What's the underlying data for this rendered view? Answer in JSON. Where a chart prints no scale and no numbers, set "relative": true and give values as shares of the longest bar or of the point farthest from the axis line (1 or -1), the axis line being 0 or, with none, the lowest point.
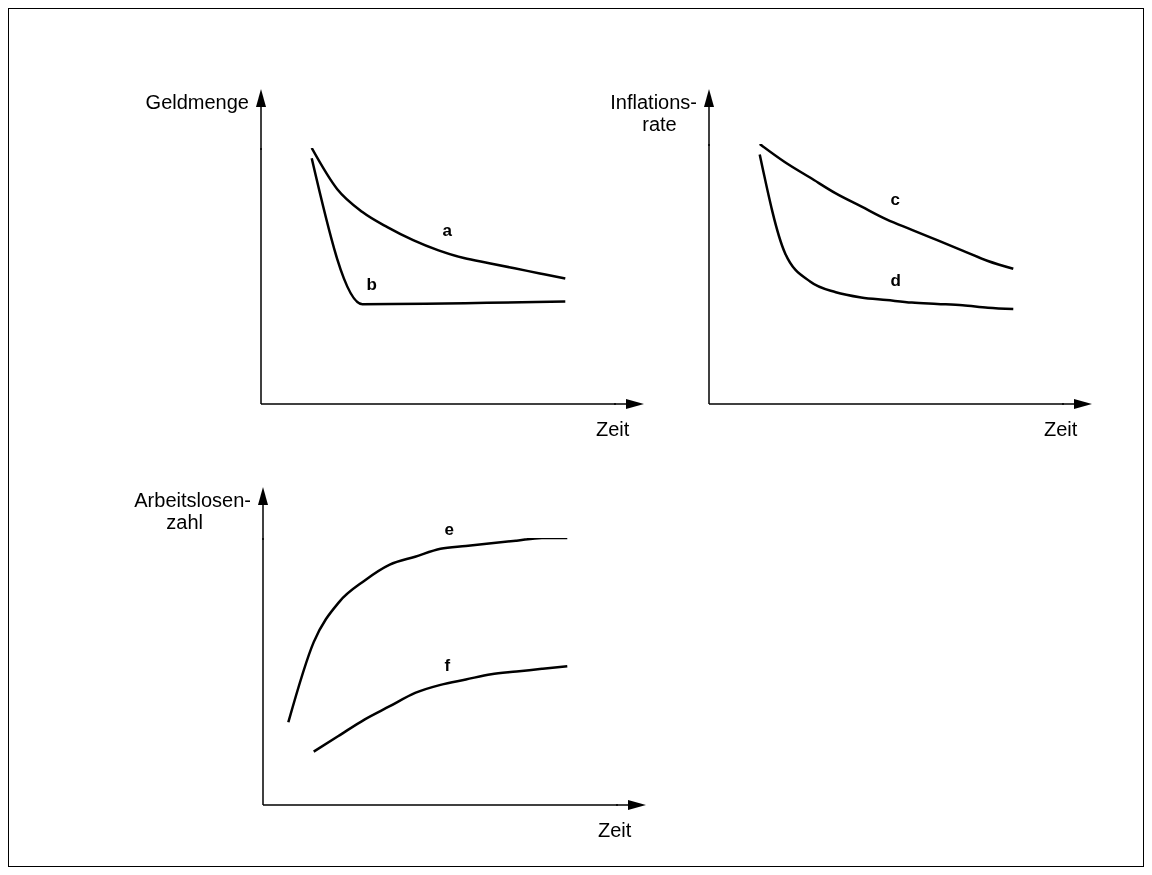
{
  "chart_data": [
    {
      "type": "line",
      "relative": true,
      "ylabel": "Geldmenge",
      "xlabel": "Zeit",
      "categories": [
        null,
        null,
        null,
        null,
        null,
        null,
        null,
        null,
        null,
        null,
        null,
        null,
        null,
        null,
        null
      ],
      "series": [
        {
          "name": "a",
          "color": "#000000",
          "values": [
            null,
            null,
            1.0,
            0.84,
            0.75,
            0.69,
            0.64,
            0.6,
            0.57,
            0.55,
            0.53,
            0.51,
            0.49,
            null,
            null
          ]
        },
        {
          "name": "b",
          "color": "#000000",
          "values": [
            null,
            null,
            0.96,
            null,
            0.39,
            null,
            null,
            null,
            null,
            null,
            null,
            null,
            0.4,
            null,
            null
          ]
        }
      ]
    },
    {
      "type": "line",
      "relative": true,
      "ylabel": "Inflations-\nrate",
      "xlabel": "Zeit",
      "categories": [
        null,
        null,
        null,
        null,
        null,
        null,
        null,
        null,
        null,
        null,
        null,
        null,
        null,
        null,
        null
      ],
      "series": [
        {
          "name": "c",
          "color": "#000000",
          "values": [
            null,
            null,
            1.0,
            0.93,
            0.87,
            0.81,
            0.76,
            0.71,
            0.67,
            0.63,
            0.59,
            0.55,
            0.52,
            null,
            null
          ]
        },
        {
          "name": "d",
          "color": "#000000",
          "values": [
            null,
            null,
            0.96,
            0.58,
            0.47,
            0.43,
            0.41,
            0.4,
            0.39,
            0.385,
            0.38,
            0.37,
            0.365,
            null,
            null
          ]
        }
      ]
    },
    {
      "type": "line",
      "relative": true,
      "ylabel": "Arbeitslosen-\nzahl",
      "xlabel": "Zeit",
      "categories": [
        null,
        null,
        null,
        null,
        null,
        null,
        null,
        null,
        null,
        null,
        null,
        null,
        null,
        null,
        null
      ],
      "series": [
        {
          "name": "e",
          "color": "#000000",
          "values": [
            null,
            0.31,
            0.61,
            0.76,
            0.84,
            0.9,
            0.93,
            0.96,
            0.97,
            0.98,
            0.99,
            1.0,
            1.0,
            null,
            null
          ]
        },
        {
          "name": "f",
          "color": "#000000",
          "values": [
            null,
            null,
            0.2,
            0.26,
            0.32,
            0.37,
            0.42,
            0.45,
            0.47,
            0.49,
            0.5,
            0.51,
            0.52,
            null,
            null
          ]
        }
      ]
    }
  ]
}
